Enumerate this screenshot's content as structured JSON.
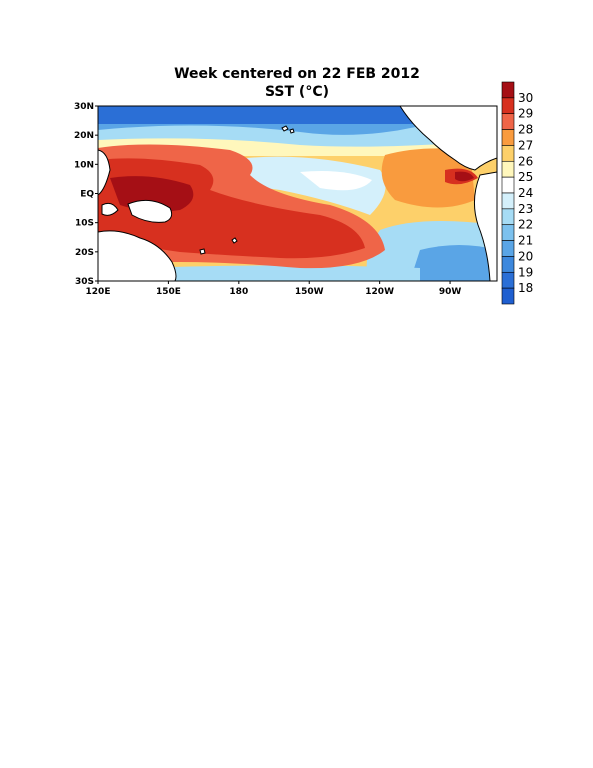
{
  "title": "Week centered on 22 FEB 2012",
  "subtitle": "SST (°C)",
  "map": {
    "lon_range": [
      120,
      290
    ],
    "lat_range": [
      -30,
      30
    ],
    "x_ticks": [
      {
        "lon": 120,
        "label": "120E"
      },
      {
        "lon": 150,
        "label": "150E"
      },
      {
        "lon": 180,
        "label": "180"
      },
      {
        "lon": 210,
        "label": "150W"
      },
      {
        "lon": 240,
        "label": "120W"
      },
      {
        "lon": 270,
        "label": "90W"
      }
    ],
    "y_ticks": [
      {
        "lat": 30,
        "label": "30N"
      },
      {
        "lat": 20,
        "label": "20N"
      },
      {
        "lat": 10,
        "label": "10N"
      },
      {
        "lat": 0,
        "label": "EQ"
      },
      {
        "lat": -10,
        "label": "10S"
      },
      {
        "lat": -20,
        "label": "20S"
      },
      {
        "lat": -30,
        "label": "30S"
      }
    ]
  },
  "colorbar": {
    "labels": [
      "30",
      "29",
      "28",
      "27",
      "26",
      "25",
      "24",
      "23",
      "22",
      "21",
      "20",
      "19",
      "18"
    ],
    "colors": [
      "#a50f15",
      "#d7301f",
      "#ef6548",
      "#f99b3e",
      "#fdd06a",
      "#fff7bc",
      "#ffffff",
      "#d4f0fb",
      "#a6dcf5",
      "#7cc1ee",
      "#5aa5e6",
      "#3d88dd",
      "#2b6fd6",
      "#1f5fd0"
    ]
  }
}
